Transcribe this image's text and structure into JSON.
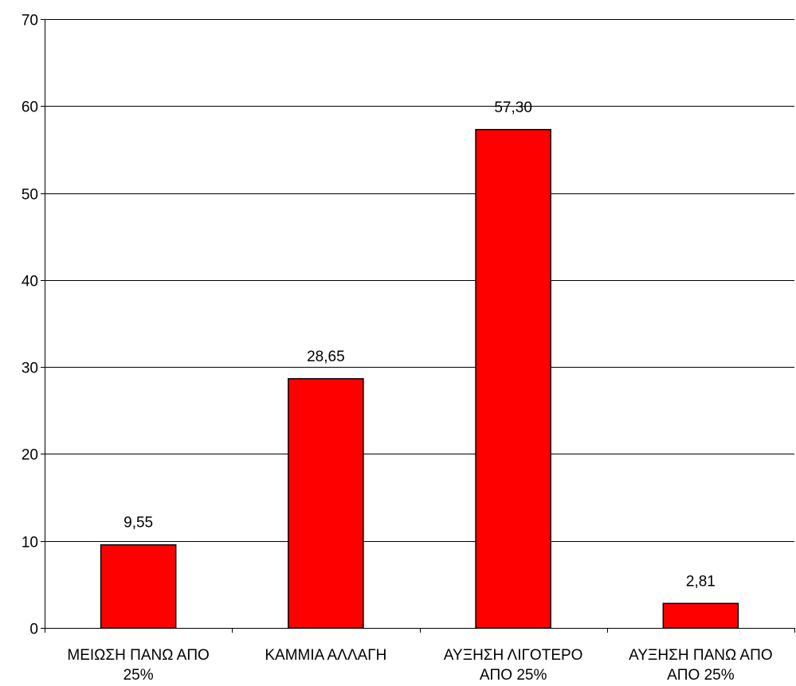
{
  "chart_data": {
    "type": "bar",
    "categories": [
      [
        "ΜΕΙΩΣΗ ΠΑΝΩ ΑΠΟ",
        "25%"
      ],
      [
        "ΚΑΜΜΙΑ ΑΛΛΑΓΗ"
      ],
      [
        "ΑΥΞΗΣΗ ΛΙΓΟΤΕΡΟ",
        "ΑΠΟ 25%"
      ],
      [
        "ΑΥΞΗΣΗ ΠΑΝΩ ΑΠΟ",
        "ΑΠΟ 25%"
      ]
    ],
    "values": [
      9.55,
      28.65,
      57.3,
      2.81
    ],
    "data_labels": [
      "9,55",
      "28,65",
      "57,30",
      "2,81"
    ],
    "ylim": [
      0,
      70
    ],
    "yticks": [
      0,
      10,
      20,
      30,
      40,
      50,
      60,
      70
    ],
    "grid": true,
    "legend": "none",
    "colors": {
      "bar": "#ff0000",
      "stroke": "#000000",
      "background": "#ffffff"
    }
  }
}
